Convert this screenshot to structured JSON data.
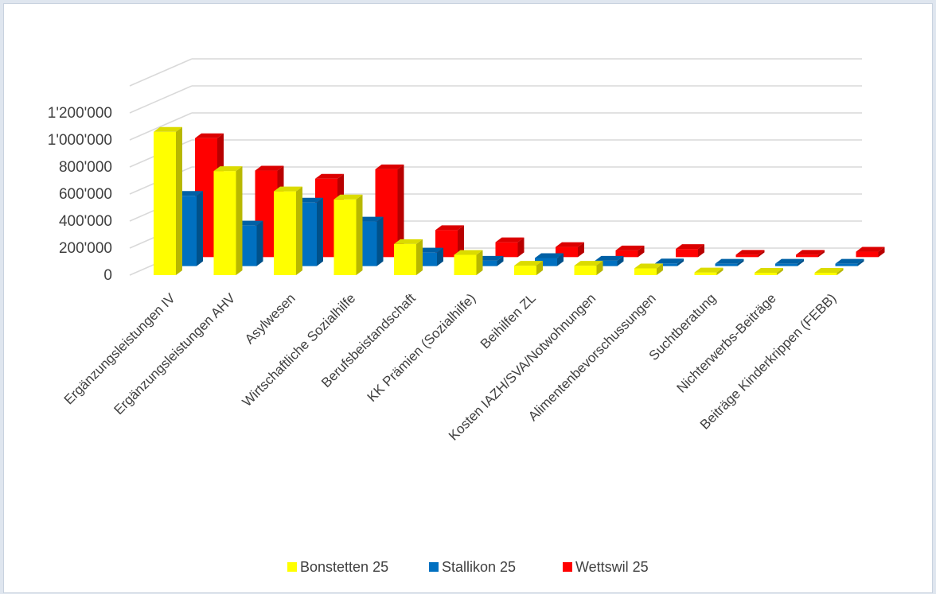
{
  "chart_data": {
    "type": "bar",
    "subtype": "3d-clustered-columns",
    "title": "",
    "xlabel": "",
    "ylabel": "",
    "ylim": [
      0,
      1200000
    ],
    "yticks": [
      "0",
      "200'000",
      "400'000",
      "600'000",
      "800'000",
      "1'000'000",
      "1'200'000"
    ],
    "grid": true,
    "legend_position": "bottom",
    "categories": [
      "Ergänzungsleistungen IV",
      "Ergänzungsleistungen AHV",
      "Asylwesen",
      "Wirtschaftliche Sozialhilfe",
      "Berufsbeistandschaft",
      "KK Prämien (Sozialhilfe)",
      "Beihilfen ZL",
      "Kosten IAZH/SVA/Notwohnungen",
      "Alimentenbevorschussungen",
      "Suchtberatung",
      "Nichterwerbs-Beiträge",
      "Beiträge Kinderkrippen (FEBB)"
    ],
    "series": [
      {
        "name": "Bonstetten 25",
        "color": "#ffff00",
        "values": [
          1060000,
          770000,
          620000,
          560000,
          230000,
          150000,
          70000,
          70000,
          50000,
          20000,
          10000,
          5000
        ]
      },
      {
        "name": "Stallikon 25",
        "color": "#0070c0",
        "values": [
          520000,
          300000,
          470000,
          330000,
          100000,
          40000,
          60000,
          40000,
          20000,
          15000,
          8000,
          5000
        ]
      },
      {
        "name": "Wettswil 25",
        "color": "#ff0000",
        "values": [
          880000,
          640000,
          580000,
          650000,
          200000,
          110000,
          75000,
          50000,
          60000,
          15000,
          15000,
          40000
        ]
      }
    ]
  }
}
